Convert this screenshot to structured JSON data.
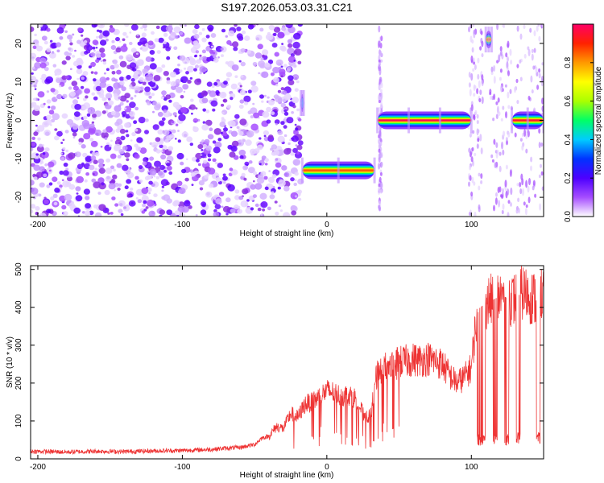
{
  "title": "S197.2026.053.03.31.C21",
  "chart_data": [
    {
      "type": "heatmap",
      "name": "spectrogram",
      "xlabel": "Height of straight line (km)",
      "ylabel": "Frequency (Hz)",
      "xlim": [
        -205,
        150
      ],
      "ylim": [
        -25,
        25
      ],
      "xticks": [
        -200,
        -100,
        0,
        100
      ],
      "yticks": [
        -20,
        -10,
        0,
        10,
        20
      ],
      "xtick_labels": [
        "-200",
        "-100",
        "0",
        "100"
      ],
      "ytick_labels": [
        "-20",
        "-10",
        "0",
        "10",
        "20"
      ],
      "colorbar": {
        "label": "Normalized spectral amplitude",
        "range": [
          0,
          1
        ],
        "ticks": [
          0.0,
          0.2,
          0.4,
          0.6,
          0.8
        ],
        "tick_labels": [
          "0.0",
          "0.2",
          "0.4",
          "0.6",
          "0.8"
        ],
        "colors": [
          "#ffffff",
          "#a64dff",
          "#4d00ff",
          "#0033ff",
          "#00ccff",
          "#00ff66",
          "#aaff00",
          "#ffff00",
          "#ff9900",
          "#ff2200",
          "#ff0066"
        ]
      },
      "noise_region": {
        "x_from": -205,
        "x_to": -18,
        "level": "low"
      },
      "tracks": [
        {
          "x_from": -18,
          "x_to": -16,
          "freq": 4.5,
          "amplitude": 0.4
        },
        {
          "x_from": -17,
          "x_to": 33,
          "freq": -13,
          "amplitude": 0.85
        },
        {
          "x_from": 35,
          "x_to": 100,
          "freq": 0,
          "amplitude": 0.98
        },
        {
          "x_from": 110,
          "x_to": 114,
          "freq": 21,
          "amplitude": 0.8
        },
        {
          "x_from": 128,
          "x_to": 150,
          "freq": 0,
          "amplitude": 0.95
        }
      ]
    },
    {
      "type": "line",
      "name": "snr",
      "xlabel": "Height of straight line (km)",
      "ylabel": "SNR (10 * v/v)",
      "xlim": [
        -205,
        150
      ],
      "ylim": [
        0,
        510
      ],
      "xticks": [
        -200,
        -100,
        0,
        100
      ],
      "yticks": [
        0,
        100,
        200,
        300,
        400,
        500
      ],
      "xtick_labels": [
        "-200",
        "-100",
        "0",
        "100"
      ],
      "ytick_labels": [
        "0",
        "100",
        "200",
        "300",
        "400",
        "500"
      ],
      "series": [
        {
          "name": "SNR",
          "color": "#ee3333",
          "x": [
            -205,
            -180,
            -160,
            -140,
            -120,
            -100,
            -80,
            -70,
            -60,
            -50,
            -45,
            -40,
            -35,
            -30,
            -25,
            -20,
            -15,
            -10,
            -5,
            0,
            5,
            10,
            15,
            20,
            25,
            30,
            35,
            40,
            45,
            50,
            55,
            60,
            65,
            70,
            75,
            80,
            85,
            90,
            95,
            100,
            102,
            104,
            106,
            110,
            115,
            120,
            125,
            130,
            135,
            140,
            145,
            150
          ],
          "y": [
            20,
            18,
            20,
            19,
            21,
            22,
            25,
            28,
            30,
            38,
            55,
            60,
            85,
            80,
            120,
            110,
            145,
            150,
            165,
            180,
            175,
            165,
            170,
            160,
            120,
            110,
            230,
            240,
            245,
            255,
            258,
            262,
            260,
            265,
            258,
            250,
            220,
            200,
            215,
            240,
            320,
            380,
            400,
            410,
            420,
            430,
            425,
            420,
            440,
            430,
            420,
            445
          ]
        }
      ],
      "dropouts": [
        {
          "x_from": 104,
          "x_to": 110,
          "y": 50
        },
        {
          "x_from": 115,
          "x_to": 118,
          "y": 50
        },
        {
          "x_from": 123,
          "x_to": 126,
          "y": 50
        },
        {
          "x_from": 131,
          "x_to": 134,
          "y": 55
        },
        {
          "x_from": 145,
          "x_to": 148,
          "y": 55
        }
      ]
    }
  ]
}
